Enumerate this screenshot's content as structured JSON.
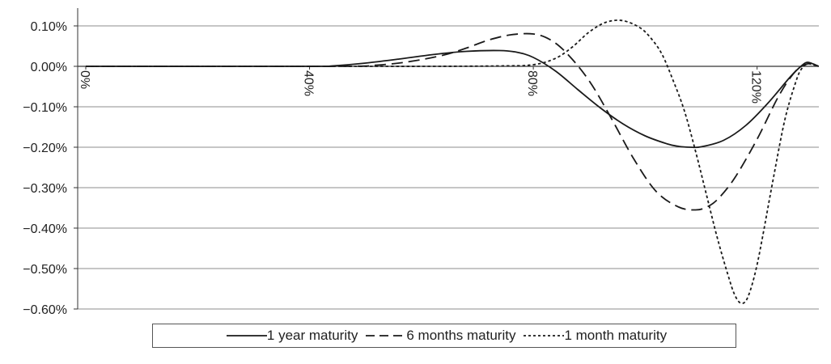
{
  "chart_data": {
    "type": "line",
    "title": "",
    "xlabel": "",
    "ylabel": "",
    "x_tick_labels": [
      "0%",
      "40%",
      "80%",
      "120%"
    ],
    "x_ticks": [
      0,
      40,
      80,
      120
    ],
    "xlim": [
      0,
      130
    ],
    "y_tick_labels": [
      "0.10%",
      "0.00%",
      "−0.10%",
      "−0.20%",
      "−0.30%",
      "−0.40%",
      "−0.50%",
      "−0.60%"
    ],
    "y_ticks": [
      0.1,
      0.0,
      -0.1,
      -0.2,
      -0.3,
      -0.4,
      -0.5,
      -0.6
    ],
    "ylim": [
      -0.6,
      0.12
    ],
    "grid": "horizontal",
    "legend_position": "bottom",
    "series": [
      {
        "name": "1 year maturity",
        "style": "solid",
        "x": [
          0,
          40,
          44,
          50,
          56,
          62,
          68,
          74,
          77,
          80,
          84,
          88,
          92,
          96,
          100,
          104,
          106,
          108,
          110,
          114,
          118,
          122,
          126,
          128,
          129,
          130,
          131
        ],
        "y": [
          0,
          0,
          0.001,
          0.008,
          0.018,
          0.029,
          0.037,
          0.039,
          0.035,
          0.022,
          -0.012,
          -0.058,
          -0.103,
          -0.142,
          -0.172,
          -0.192,
          -0.198,
          -0.2,
          -0.199,
          -0.183,
          -0.146,
          -0.09,
          -0.025,
          0.002,
          0.01,
          0.006,
          0
        ]
      },
      {
        "name": "6 months maturity",
        "style": "dashed",
        "x": [
          0,
          44,
          52,
          58,
          64,
          68,
          72,
          76,
          80,
          83,
          86,
          90,
          94,
          98,
          102,
          106,
          109,
          111,
          113,
          116,
          120,
          124,
          127,
          129,
          130,
          131
        ],
        "y": [
          0,
          0,
          0.003,
          0.012,
          0.028,
          0.045,
          0.065,
          0.078,
          0.08,
          0.066,
          0.032,
          -0.036,
          -0.13,
          -0.23,
          -0.31,
          -0.348,
          -0.355,
          -0.348,
          -0.328,
          -0.276,
          -0.18,
          -0.07,
          -0.01,
          0.006,
          0.005,
          0
        ]
      },
      {
        "name": "1 month maturity",
        "style": "dotted",
        "x": [
          0,
          44,
          62,
          74,
          80,
          84,
          87,
          90,
          93,
          96,
          99,
          101,
          103,
          105,
          107,
          109,
          111,
          113,
          115,
          116,
          117,
          118,
          119,
          120,
          121,
          123,
          125,
          127,
          128,
          129,
          130,
          131
        ],
        "y": [
          0,
          0,
          0,
          0.001,
          0.004,
          0.02,
          0.048,
          0.085,
          0.109,
          0.113,
          0.096,
          0.07,
          0.03,
          -0.035,
          -0.11,
          -0.21,
          -0.32,
          -0.43,
          -0.525,
          -0.565,
          -0.585,
          -0.58,
          -0.545,
          -0.49,
          -0.42,
          -0.27,
          -0.13,
          -0.035,
          -0.005,
          0.006,
          0.004,
          0
        ]
      }
    ]
  },
  "legend": {
    "items": [
      {
        "label": "1 year maturity",
        "style": "solid"
      },
      {
        "label": "6 months maturity",
        "style": "dashed"
      },
      {
        "label": "1 month maturity",
        "style": "dotted"
      }
    ]
  },
  "colors": {
    "line": "#1a1a1a",
    "grid": "#8c8c8c",
    "axis": "#333333"
  }
}
